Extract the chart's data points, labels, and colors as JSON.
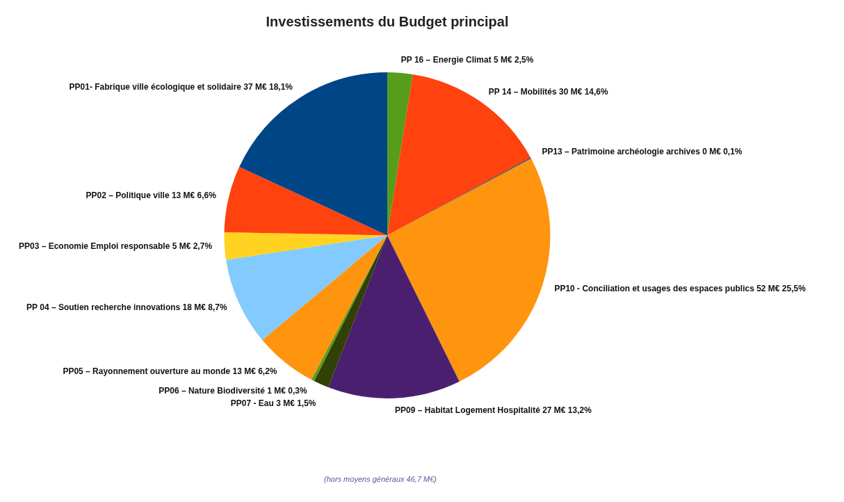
{
  "chart_data": {
    "type": "pie",
    "title": "Investissements du Budget principal",
    "categories": [
      "PP 16 – Energie Climat",
      "PP 14 – Mobilités",
      "PP13 – Patrimoine archéologie archives",
      "PP10 - Conciliation et usages des espaces publics",
      "PP09 – Habitat Logement Hospitalité",
      "PP07 - Eau",
      "PP06 – Nature Biodiversité",
      "PP05 – Rayonnement ouverture au monde",
      "PP 04 – Soutien recherche innovations",
      "PP03 – Economie Emploi responsable",
      "PP02 – Politique ville",
      "PP01- Fabrique ville écologique et solidaire"
    ],
    "values": [
      2.5,
      14.6,
      0.1,
      25.5,
      13.2,
      1.5,
      0.3,
      6.2,
      8.7,
      2.7,
      6.6,
      18.1
    ],
    "value_labels": [
      "5 M€ 2,5%",
      "30 M€ 14,6%",
      "0 M€ 0,1%",
      "52 M€ 25,5%",
      "27 M€ 13,2%",
      "3 M€ 1,5%",
      "1 M€ 0,3%",
      "13 M€ 6,2%",
      "18 M€ 8,7%",
      "5 M€ 2,7%",
      "13 M€ 6,6%",
      "37 M€ 18,1%"
    ],
    "colors": [
      "#579d1c",
      "#ff420e",
      "#004586",
      "#ff950e",
      "#4b1f6f",
      "#314004",
      "#579d1c",
      "#ff950e",
      "#83caff",
      "#ffd320",
      "#ff420e",
      "#004586"
    ],
    "annotations": [
      "(hors moyens généraux 46,7 M€)"
    ]
  }
}
